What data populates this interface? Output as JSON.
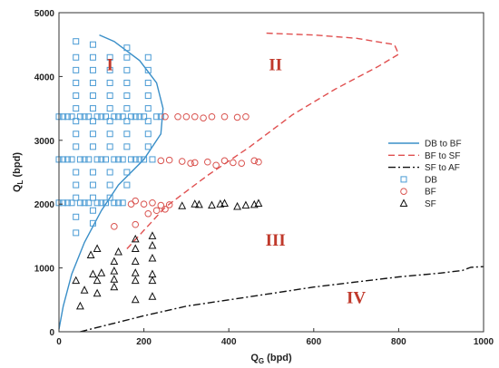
{
  "chart_data": {
    "type": "scatter",
    "xlabel": "Q_G (bpd)",
    "ylabel": "Q_L (bpd)",
    "xlabel_main": "Q",
    "xlabel_sub": "G",
    "xlabel_unit": " (bpd)",
    "ylabel_main": "Q",
    "ylabel_sub": "L",
    "ylabel_unit": " (bpd)",
    "xlim": [
      0,
      1000
    ],
    "ylim": [
      0,
      5000
    ],
    "x_ticks": [
      0,
      200,
      400,
      600,
      800,
      1000
    ],
    "y_ticks": [
      0,
      1000,
      2000,
      3000,
      4000,
      5000
    ],
    "legend_position": "right",
    "regions": [
      {
        "label": "I",
        "x": 120,
        "y": 4100
      },
      {
        "label": "II",
        "x": 510,
        "y": 4100
      },
      {
        "label": "III",
        "x": 510,
        "y": 1350
      },
      {
        "label": "IV",
        "x": 700,
        "y": 450
      }
    ],
    "boundaries": [
      {
        "name": "DB to BF",
        "color": "#3a8fc8",
        "dash": "",
        "points": [
          [
            0,
            40
          ],
          [
            10,
            400
          ],
          [
            30,
            900
          ],
          [
            60,
            1400
          ],
          [
            100,
            1900
          ],
          [
            140,
            2300
          ],
          [
            200,
            2700
          ],
          [
            240,
            3100
          ],
          [
            245,
            3500
          ],
          [
            230,
            3900
          ],
          [
            190,
            4250
          ],
          [
            130,
            4550
          ],
          [
            95,
            4650
          ]
        ]
      },
      {
        "name": "BF to SF",
        "color": "#e05050",
        "dash": "7,4",
        "points": [
          [
            160,
            1300
          ],
          [
            250,
            1950
          ],
          [
            350,
            2450
          ],
          [
            450,
            2900
          ],
          [
            550,
            3400
          ],
          [
            650,
            3800
          ],
          [
            750,
            4150
          ],
          [
            800,
            4350
          ],
          [
            790,
            4500
          ],
          [
            700,
            4600
          ],
          [
            600,
            4650
          ],
          [
            520,
            4670
          ],
          [
            485,
            4680
          ]
        ]
      },
      {
        "name": "SF to AF",
        "color": "#111111",
        "dash": "8,3,2,3",
        "points": [
          [
            50,
            0
          ],
          [
            200,
            250
          ],
          [
            300,
            400
          ],
          [
            400,
            500
          ],
          [
            500,
            600
          ],
          [
            600,
            700
          ],
          [
            700,
            780
          ],
          [
            800,
            860
          ],
          [
            900,
            920
          ],
          [
            950,
            960
          ],
          [
            970,
            1010
          ],
          [
            1000,
            1020
          ]
        ]
      }
    ],
    "series": [
      {
        "name": "DB",
        "marker": "square",
        "color": "#4a9bd4",
        "points": [
          [
            40,
            4550
          ],
          [
            40,
            4300
          ],
          [
            40,
            4100
          ],
          [
            40,
            3900
          ],
          [
            40,
            3700
          ],
          [
            40,
            3500
          ],
          [
            40,
            3300
          ],
          [
            40,
            3100
          ],
          [
            40,
            2900
          ],
          [
            40,
            2500
          ],
          [
            40,
            2300
          ],
          [
            40,
            2100
          ],
          [
            40,
            1800
          ],
          [
            40,
            1550
          ],
          [
            80,
            4500
          ],
          [
            80,
            4300
          ],
          [
            80,
            4100
          ],
          [
            80,
            3900
          ],
          [
            80,
            3700
          ],
          [
            80,
            3500
          ],
          [
            80,
            3300
          ],
          [
            80,
            3100
          ],
          [
            80,
            2900
          ],
          [
            80,
            2500
          ],
          [
            80,
            2300
          ],
          [
            80,
            2100
          ],
          [
            80,
            1900
          ],
          [
            80,
            1700
          ],
          [
            120,
            4300
          ],
          [
            120,
            4100
          ],
          [
            120,
            3900
          ],
          [
            120,
            3700
          ],
          [
            120,
            3500
          ],
          [
            120,
            3300
          ],
          [
            120,
            3100
          ],
          [
            120,
            2900
          ],
          [
            120,
            2500
          ],
          [
            120,
            2300
          ],
          [
            120,
            2100
          ],
          [
            160,
            4450
          ],
          [
            160,
            4300
          ],
          [
            160,
            4100
          ],
          [
            160,
            3900
          ],
          [
            160,
            3700
          ],
          [
            160,
            3500
          ],
          [
            160,
            3300
          ],
          [
            160,
            3100
          ],
          [
            160,
            2900
          ],
          [
            160,
            2500
          ],
          [
            160,
            2300
          ],
          [
            210,
            4300
          ],
          [
            210,
            4100
          ],
          [
            210,
            3900
          ],
          [
            210,
            3700
          ],
          [
            210,
            3500
          ],
          [
            210,
            3300
          ],
          [
            210,
            3100
          ],
          [
            210,
            2900
          ],
          [
            0,
            3370
          ],
          [
            10,
            3370
          ],
          [
            20,
            3370
          ],
          [
            30,
            3370
          ],
          [
            50,
            3370
          ],
          [
            60,
            3370
          ],
          [
            70,
            3370
          ],
          [
            90,
            3370
          ],
          [
            100,
            3370
          ],
          [
            110,
            3370
          ],
          [
            130,
            3370
          ],
          [
            140,
            3370
          ],
          [
            150,
            3370
          ],
          [
            170,
            3370
          ],
          [
            180,
            3370
          ],
          [
            190,
            3370
          ],
          [
            200,
            3370
          ],
          [
            230,
            3370
          ],
          [
            240,
            3370
          ],
          [
            0,
            2700
          ],
          [
            10,
            2700
          ],
          [
            20,
            2700
          ],
          [
            30,
            2700
          ],
          [
            50,
            2700
          ],
          [
            60,
            2700
          ],
          [
            70,
            2700
          ],
          [
            90,
            2700
          ],
          [
            100,
            2700
          ],
          [
            110,
            2700
          ],
          [
            130,
            2700
          ],
          [
            140,
            2700
          ],
          [
            150,
            2700
          ],
          [
            170,
            2700
          ],
          [
            180,
            2700
          ],
          [
            190,
            2700
          ],
          [
            200,
            2700
          ],
          [
            220,
            2700
          ],
          [
            0,
            2020
          ],
          [
            10,
            2020
          ],
          [
            20,
            2020
          ],
          [
            30,
            2020
          ],
          [
            50,
            2020
          ],
          [
            60,
            2020
          ],
          [
            70,
            2020
          ],
          [
            90,
            2020
          ],
          [
            100,
            2020
          ],
          [
            110,
            2020
          ],
          [
            130,
            2020
          ],
          [
            140,
            2020
          ],
          [
            150,
            2020
          ]
        ]
      },
      {
        "name": "BF",
        "marker": "circle",
        "color": "#d9534f",
        "points": [
          [
            250,
            3370
          ],
          [
            280,
            3370
          ],
          [
            300,
            3370
          ],
          [
            320,
            3370
          ],
          [
            340,
            3350
          ],
          [
            360,
            3370
          ],
          [
            390,
            3370
          ],
          [
            420,
            3360
          ],
          [
            440,
            3370
          ],
          [
            240,
            2680
          ],
          [
            260,
            2690
          ],
          [
            290,
            2670
          ],
          [
            310,
            2640
          ],
          [
            320,
            2650
          ],
          [
            350,
            2660
          ],
          [
            370,
            2610
          ],
          [
            390,
            2680
          ],
          [
            410,
            2650
          ],
          [
            430,
            2640
          ],
          [
            460,
            2680
          ],
          [
            470,
            2660
          ],
          [
            170,
            2000
          ],
          [
            180,
            2050
          ],
          [
            200,
            2000
          ],
          [
            220,
            2020
          ],
          [
            240,
            1980
          ],
          [
            260,
            1990
          ],
          [
            130,
            1650
          ],
          [
            180,
            1680
          ],
          [
            210,
            1850
          ],
          [
            230,
            1900
          ],
          [
            250,
            1920
          ]
        ]
      },
      {
        "name": "SF",
        "marker": "triangle",
        "color": "#111111",
        "points": [
          [
            290,
            1970
          ],
          [
            320,
            2000
          ],
          [
            330,
            1990
          ],
          [
            360,
            1980
          ],
          [
            380,
            2000
          ],
          [
            390,
            2010
          ],
          [
            420,
            1960
          ],
          [
            440,
            1980
          ],
          [
            460,
            1990
          ],
          [
            470,
            2010
          ],
          [
            75,
            1200
          ],
          [
            140,
            1250
          ],
          [
            180,
            1300
          ],
          [
            220,
            1350
          ],
          [
            180,
            1450
          ],
          [
            220,
            1500
          ],
          [
            90,
            1300
          ],
          [
            130,
            1100
          ],
          [
            180,
            1100
          ],
          [
            220,
            1150
          ],
          [
            80,
            900
          ],
          [
            130,
            950
          ],
          [
            180,
            920
          ],
          [
            220,
            900
          ],
          [
            60,
            650
          ],
          [
            90,
            800
          ],
          [
            130,
            820
          ],
          [
            180,
            800
          ],
          [
            220,
            800
          ],
          [
            50,
            400
          ],
          [
            90,
            600
          ],
          [
            130,
            700
          ],
          [
            180,
            500
          ],
          [
            220,
            550
          ],
          [
            40,
            800
          ],
          [
            100,
            920
          ]
        ]
      }
    ],
    "legend": [
      {
        "label": "DB to BF",
        "kind": "line",
        "color": "#3a8fc8",
        "dash": ""
      },
      {
        "label": "BF to SF",
        "kind": "line",
        "color": "#e05050",
        "dash": "7,4"
      },
      {
        "label": "SF to AF",
        "kind": "line",
        "color": "#111111",
        "dash": "8,3,2,3"
      },
      {
        "label": "DB",
        "kind": "square",
        "color": "#4a9bd4"
      },
      {
        "label": "BF",
        "kind": "circle",
        "color": "#d9534f"
      },
      {
        "label": "SF",
        "kind": "triangle",
        "color": "#111111"
      }
    ]
  }
}
